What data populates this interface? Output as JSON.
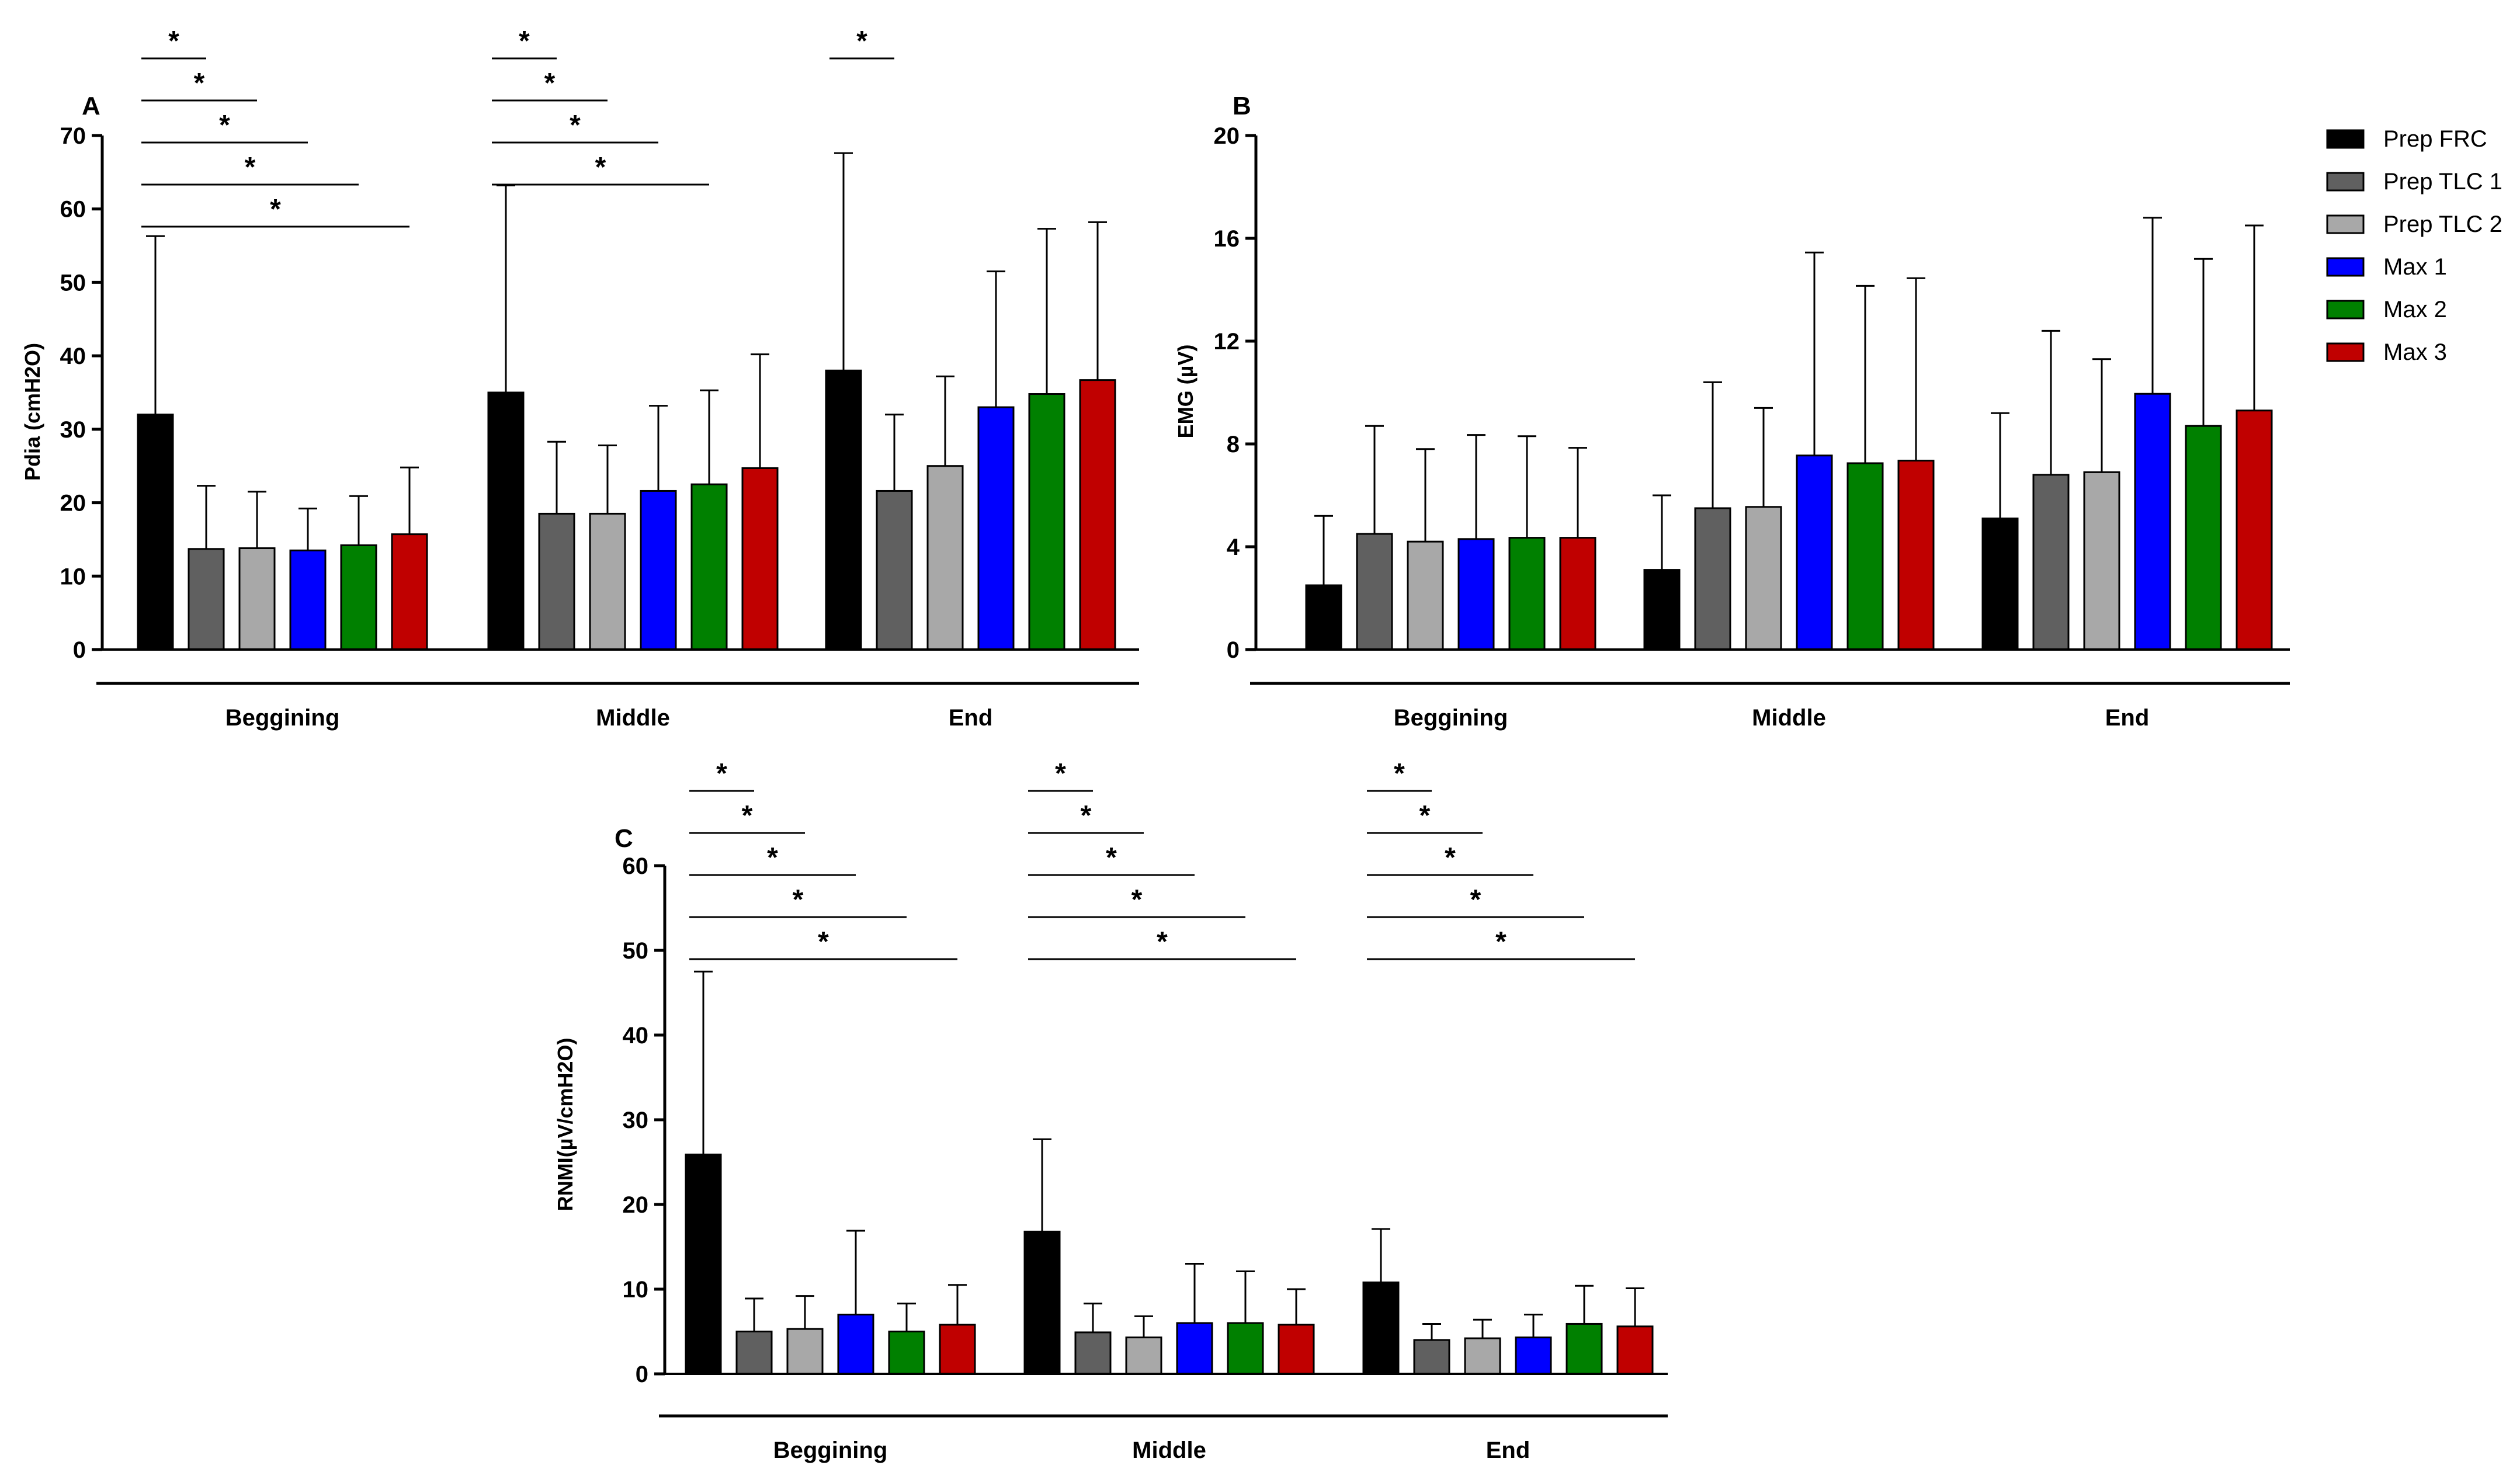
{
  "chart_data": [
    {
      "type": "bar",
      "panel": "A",
      "ylabel": "Pdia (cmH2O)",
      "ylim": [
        0,
        70
      ],
      "yticks": [
        0,
        10,
        20,
        30,
        40,
        50,
        60,
        70
      ],
      "categories": [
        "Beggining",
        "Middle",
        "End"
      ],
      "series": [
        {
          "name": "Prep FRC",
          "values": [
            32,
            35,
            38
          ],
          "errors": [
            24.3,
            28.2,
            29.6
          ]
        },
        {
          "name": "Prep TLC 1",
          "values": [
            13.7,
            18.5,
            21.6
          ],
          "errors": [
            8.6,
            9.8,
            10.4
          ]
        },
        {
          "name": "Prep TLC 2",
          "values": [
            13.8,
            18.5,
            25
          ],
          "errors": [
            7.7,
            9.3,
            12.2
          ]
        },
        {
          "name": "Max 1",
          "values": [
            13.5,
            21.6,
            33
          ],
          "errors": [
            5.7,
            11.6,
            18.5
          ]
        },
        {
          "name": "Max 2",
          "values": [
            14.2,
            22.5,
            34.8
          ],
          "errors": [
            6.7,
            12.8,
            22.5
          ]
        },
        {
          "name": "Max 3",
          "values": [
            15.7,
            24.7,
            36.7
          ],
          "errors": [
            9.1,
            15.5,
            21.5
          ]
        }
      ],
      "significance": [
        {
          "category": 0,
          "from": 0,
          "to": 1,
          "label": "*"
        },
        {
          "category": 0,
          "from": 0,
          "to": 2,
          "label": "*"
        },
        {
          "category": 0,
          "from": 0,
          "to": 3,
          "label": "*"
        },
        {
          "category": 0,
          "from": 0,
          "to": 4,
          "label": "*"
        },
        {
          "category": 0,
          "from": 0,
          "to": 5,
          "label": "*"
        },
        {
          "category": 1,
          "from": 0,
          "to": 1,
          "label": "*"
        },
        {
          "category": 1,
          "from": 0,
          "to": 2,
          "label": "*"
        },
        {
          "category": 1,
          "from": 0,
          "to": 3,
          "label": "*"
        },
        {
          "category": 1,
          "from": 0,
          "to": 4,
          "label": "*"
        },
        {
          "category": 2,
          "from": 0,
          "to": 1,
          "label": "*"
        }
      ]
    },
    {
      "type": "bar",
      "panel": "B",
      "ylabel": "EMG (µV)",
      "ylim": [
        0,
        20
      ],
      "yticks": [
        0,
        4,
        8,
        12,
        16,
        20
      ],
      "categories": [
        "Beggining",
        "Middle",
        "End"
      ],
      "series": [
        {
          "name": "Prep FRC",
          "values": [
            2.5,
            3.1,
            5.1
          ],
          "errors": [
            2.7,
            2.9,
            4.1
          ]
        },
        {
          "name": "Prep TLC 1",
          "values": [
            4.5,
            5.5,
            6.8
          ],
          "errors": [
            4.2,
            4.9,
            5.6
          ]
        },
        {
          "name": "Prep TLC 2",
          "values": [
            4.2,
            5.55,
            6.9
          ],
          "errors": [
            3.6,
            3.85,
            4.4
          ]
        },
        {
          "name": "Max 1",
          "values": [
            4.3,
            7.55,
            9.95
          ],
          "errors": [
            4.05,
            7.9,
            6.85
          ]
        },
        {
          "name": "Max 2",
          "values": [
            4.35,
            7.25,
            8.7
          ],
          "errors": [
            3.95,
            6.9,
            6.5
          ]
        },
        {
          "name": "Max 3",
          "values": [
            4.35,
            7.35,
            9.3
          ],
          "errors": [
            3.5,
            7.1,
            7.2
          ]
        }
      ],
      "significance": []
    },
    {
      "type": "bar",
      "panel": "C",
      "ylabel": "RNMI(µV/cmH2O)",
      "ylim": [
        0,
        60
      ],
      "yticks": [
        0,
        10,
        20,
        30,
        40,
        50,
        60
      ],
      "categories": [
        "Beggining",
        "Middle",
        "End"
      ],
      "series": [
        {
          "name": "Prep FRC",
          "values": [
            25.9,
            16.8,
            10.8
          ],
          "errors": [
            21.6,
            10.9,
            6.3
          ]
        },
        {
          "name": "Prep TLC 1",
          "values": [
            5,
            4.9,
            4
          ],
          "errors": [
            3.9,
            3.4,
            1.9
          ]
        },
        {
          "name": "Prep TLC 2",
          "values": [
            5.3,
            4.3,
            4.2
          ],
          "errors": [
            3.9,
            2.5,
            2.2
          ]
        },
        {
          "name": "Max 1",
          "values": [
            7,
            6,
            4.3
          ],
          "errors": [
            9.9,
            7,
            2.7
          ]
        },
        {
          "name": "Max 2",
          "values": [
            5,
            6,
            5.9
          ],
          "errors": [
            3.3,
            6.1,
            4.5
          ]
        },
        {
          "name": "Max 3",
          "values": [
            5.8,
            5.8,
            5.6
          ],
          "errors": [
            4.7,
            4.2,
            4.5
          ]
        }
      ],
      "significance": [
        {
          "category": 0,
          "from": 0,
          "to": 1,
          "label": "*"
        },
        {
          "category": 0,
          "from": 0,
          "to": 2,
          "label": "*"
        },
        {
          "category": 0,
          "from": 0,
          "to": 3,
          "label": "*"
        },
        {
          "category": 0,
          "from": 0,
          "to": 4,
          "label": "*"
        },
        {
          "category": 0,
          "from": 0,
          "to": 5,
          "label": "*"
        },
        {
          "category": 1,
          "from": 0,
          "to": 1,
          "label": "*"
        },
        {
          "category": 1,
          "from": 0,
          "to": 2,
          "label": "*"
        },
        {
          "category": 1,
          "from": 0,
          "to": 3,
          "label": "*"
        },
        {
          "category": 1,
          "from": 0,
          "to": 4,
          "label": "*"
        },
        {
          "category": 1,
          "from": 0,
          "to": 5,
          "label": "*"
        },
        {
          "category": 2,
          "from": 0,
          "to": 1,
          "label": "*"
        },
        {
          "category": 2,
          "from": 0,
          "to": 2,
          "label": "*"
        },
        {
          "category": 2,
          "from": 0,
          "to": 3,
          "label": "*"
        },
        {
          "category": 2,
          "from": 0,
          "to": 4,
          "label": "*"
        },
        {
          "category": 2,
          "from": 0,
          "to": 5,
          "label": "*"
        }
      ]
    }
  ],
  "legend": {
    "items": [
      {
        "label": "Prep FRC",
        "color": "#000000"
      },
      {
        "label": "Prep TLC 1",
        "color": "#606060"
      },
      {
        "label": "Prep TLC 2",
        "color": "#a8a8a8"
      },
      {
        "label": "Max 1",
        "color": "#0000ff"
      },
      {
        "label": "Max 2",
        "color": "#008000"
      },
      {
        "label": "Max 3",
        "color": "#c00000"
      }
    ]
  }
}
